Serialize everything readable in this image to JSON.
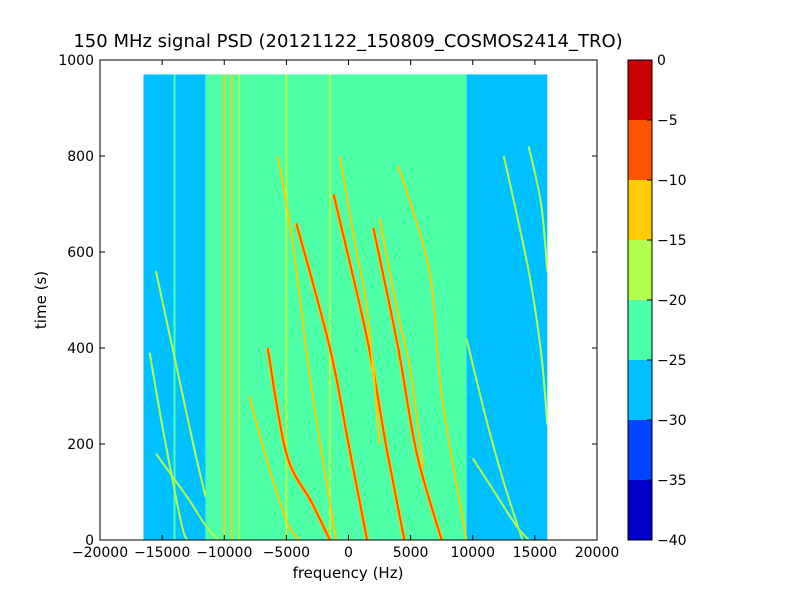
{
  "chart_data": {
    "type": "heatmap",
    "title": "150 MHz signal PSD (20121122_150809_COSMOS2414_TRO)",
    "xlabel": "frequency (Hz)",
    "ylabel": "time (s)",
    "xlim": [
      -20000,
      20000
    ],
    "ylim": [
      0,
      1000
    ],
    "x_ticks": [
      -20000,
      -15000,
      -10000,
      -5000,
      0,
      5000,
      10000,
      15000,
      20000
    ],
    "x_tick_labels": [
      "−20000",
      "−15000",
      "−10000",
      "−5000",
      "0",
      "5000",
      "10000",
      "15000",
      "20000"
    ],
    "y_ticks": [
      0,
      200,
      400,
      600,
      800,
      1000
    ],
    "y_tick_labels": [
      "0",
      "200",
      "400",
      "600",
      "800",
      "1000"
    ],
    "data_extent": {
      "freq_min": -16500,
      "freq_max": 16000,
      "time_min": 0,
      "time_max": 970
    },
    "background_regions": [
      {
        "freq_from": -16500,
        "freq_to": -11500,
        "level": -27.5
      },
      {
        "freq_from": -11500,
        "freq_to": 9500,
        "level": -22.5
      },
      {
        "freq_from": 9500,
        "freq_to": 16000,
        "level": -27.5
      }
    ],
    "vertical_lines": [
      {
        "freq": -14000,
        "level": -22.5
      },
      {
        "freq": -10000,
        "level": -12.5
      },
      {
        "freq": -9400,
        "level": -12.5
      },
      {
        "freq": -8800,
        "level": -17.5
      },
      {
        "freq": -5000,
        "level": -17.5
      },
      {
        "freq": -1500,
        "level": -17.5
      },
      {
        "freq": 9200,
        "level": -22.5
      }
    ],
    "tracks": [
      {
        "level": -7.5,
        "points": [
          [
            -6500,
            400
          ],
          [
            -5000,
            180
          ],
          [
            -3000,
            80
          ],
          [
            -1500,
            0
          ]
        ]
      },
      {
        "level": -7.5,
        "points": [
          [
            -4200,
            660
          ],
          [
            -1500,
            400
          ],
          [
            0,
            200
          ],
          [
            1500,
            0
          ]
        ]
      },
      {
        "level": -7.5,
        "points": [
          [
            -1200,
            720
          ],
          [
            1500,
            420
          ],
          [
            3000,
            200
          ],
          [
            4500,
            0
          ]
        ]
      },
      {
        "level": -7.5,
        "points": [
          [
            2000,
            650
          ],
          [
            4000,
            400
          ],
          [
            5500,
            180
          ],
          [
            7500,
            0
          ]
        ]
      },
      {
        "level": -12.5,
        "points": [
          [
            -5700,
            800
          ],
          [
            -4500,
            620
          ],
          [
            -3000,
            320
          ],
          [
            -1000,
            0
          ]
        ]
      },
      {
        "level": -12.5,
        "points": [
          [
            -700,
            800
          ],
          [
            500,
            620
          ],
          [
            1500,
            480
          ],
          [
            2500,
            200
          ]
        ]
      },
      {
        "level": -12.5,
        "points": [
          [
            2500,
            670
          ],
          [
            4000,
            470
          ],
          [
            5000,
            350
          ],
          [
            6000,
            150
          ]
        ]
      },
      {
        "level": -12.5,
        "points": [
          [
            4000,
            780
          ],
          [
            6500,
            560
          ],
          [
            7500,
            300
          ],
          [
            9500,
            0
          ]
        ]
      },
      {
        "level": -12.5,
        "points": [
          [
            -8000,
            300
          ],
          [
            -6500,
            160
          ],
          [
            -5000,
            40
          ],
          [
            -4000,
            0
          ]
        ]
      },
      {
        "level": -17.5,
        "points": [
          [
            -15500,
            560
          ],
          [
            -14000,
            380
          ],
          [
            -12500,
            200
          ],
          [
            -11500,
            90
          ]
        ]
      },
      {
        "level": -17.5,
        "points": [
          [
            -15500,
            180
          ],
          [
            -13000,
            90
          ],
          [
            -11500,
            30
          ],
          [
            -10500,
            0
          ]
        ]
      },
      {
        "level": -17.5,
        "points": [
          [
            -16000,
            390
          ],
          [
            -15000,
            240
          ],
          [
            -13500,
            40
          ],
          [
            -13000,
            0
          ]
        ]
      },
      {
        "level": -17.5,
        "points": [
          [
            9500,
            420
          ],
          [
            11000,
            260
          ],
          [
            12500,
            120
          ],
          [
            14000,
            0
          ]
        ]
      },
      {
        "level": -17.5,
        "points": [
          [
            12500,
            800
          ],
          [
            14500,
            560
          ],
          [
            15500,
            390
          ],
          [
            16000,
            240
          ]
        ]
      },
      {
        "level": -17.5,
        "points": [
          [
            10000,
            170
          ],
          [
            12000,
            90
          ],
          [
            13500,
            30
          ],
          [
            14500,
            0
          ]
        ]
      },
      {
        "level": -17.5,
        "points": [
          [
            14500,
            820
          ],
          [
            15500,
            700
          ],
          [
            16000,
            560
          ]
        ]
      }
    ]
  },
  "colorbar": {
    "ticks": [
      0,
      -5,
      -10,
      -15,
      -20,
      -25,
      -30,
      -35,
      -40
    ],
    "tick_labels": [
      "0",
      "−5",
      "−10",
      "−15",
      "−20",
      "−25",
      "−30",
      "−35",
      "−40"
    ],
    "range": [
      -40,
      0
    ],
    "bands": [
      {
        "from": -40,
        "to": -35,
        "color": "#0000cc"
      },
      {
        "from": -35,
        "to": -30,
        "color": "#0044ff"
      },
      {
        "from": -30,
        "to": -25,
        "color": "#00c0ff"
      },
      {
        "from": -25,
        "to": -20,
        "color": "#4dffa6"
      },
      {
        "from": -20,
        "to": -15,
        "color": "#b3ff4d"
      },
      {
        "from": -15,
        "to": -10,
        "color": "#ffcc00"
      },
      {
        "from": -10,
        "to": -5,
        "color": "#ff5500"
      },
      {
        "from": -5,
        "to": 0,
        "color": "#cc0000"
      }
    ]
  }
}
